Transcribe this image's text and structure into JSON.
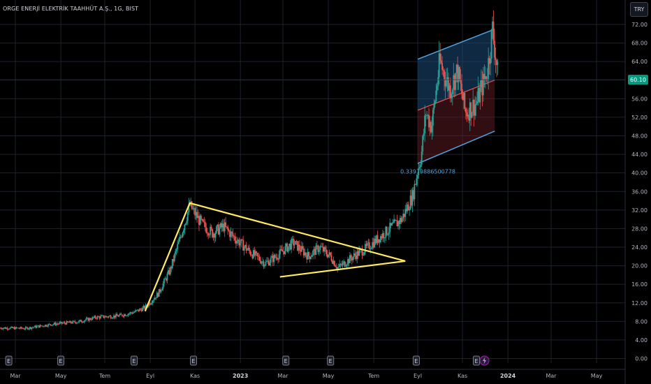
{
  "header": {
    "symbol_title": "ORGE ENERJİ ELEKTRİK TAAHHÜT A.Ş., 1G, BIST",
    "currency_label": "TRY"
  },
  "colors": {
    "background": "#000000",
    "up_candle": "#26a69a",
    "down_candle": "#ef5350",
    "triangle_lines": "#ffe862",
    "channel_lines": "#4fa3e0",
    "channel_upper_fill": "#1e4a78",
    "channel_lower_fill": "#6b1f26",
    "channel_midline": "#ef5350",
    "price_badge": "#089981",
    "grid": "#1e222d"
  },
  "price_badge": {
    "value": 60.1,
    "label": "60.10"
  },
  "channel_annotation": {
    "text": "0.3397988650077​8"
  },
  "earnings_marker": {
    "label": "E"
  },
  "dividend_marker": {
    "icon": "lightning-icon"
  },
  "chart_data": {
    "type": "candlestick",
    "title": "ORGE ENERJİ ELEKTRİK TAAHHÜT A.Ş., 1G, BIST",
    "y_axis": {
      "range": [
        0,
        72
      ],
      "ticks": [
        "0.00",
        "4.00",
        "8.00",
        "12.00",
        "16.00",
        "20.00",
        "24.00",
        "28.00",
        "32.00",
        "36.00",
        "40.00",
        "44.00",
        "48.00",
        "52.00",
        "56.00",
        "60.00",
        "64.00",
        "68.00",
        "72.00"
      ]
    },
    "x_axis": {
      "range": [
        "2022-02-08",
        "2024-06-10"
      ],
      "labels": [
        {
          "text": "Mar",
          "date": "2022-03-01",
          "bold": false
        },
        {
          "text": "May",
          "date": "2022-05-02",
          "bold": false
        },
        {
          "text": "Tem",
          "date": "2022-07-01",
          "bold": false
        },
        {
          "text": "Eyl",
          "date": "2022-09-01",
          "bold": false
        },
        {
          "text": "Kas",
          "date": "2022-11-01",
          "bold": false
        },
        {
          "text": "2023",
          "date": "2023-01-02",
          "bold": true
        },
        {
          "text": "Mar",
          "date": "2023-03-01",
          "bold": false
        },
        {
          "text": "May",
          "date": "2023-05-02",
          "bold": false
        },
        {
          "text": "Tem",
          "date": "2023-07-03",
          "bold": false
        },
        {
          "text": "Eyl",
          "date": "2023-09-01",
          "bold": false
        },
        {
          "text": "Kas",
          "date": "2023-11-01",
          "bold": false
        },
        {
          "text": "2024",
          "date": "2024-01-02",
          "bold": true
        },
        {
          "text": "Mar",
          "date": "2024-03-01",
          "bold": false
        },
        {
          "text": "May",
          "date": "2024-05-02",
          "bold": false
        }
      ]
    },
    "close_path": [
      [
        "2022-02-08",
        6.6
      ],
      [
        "2022-03-15",
        6.5
      ],
      [
        "2022-04-20",
        7.4
      ],
      [
        "2022-05-25",
        7.9
      ],
      [
        "2022-06-20",
        8.9
      ],
      [
        "2022-07-20",
        9.2
      ],
      [
        "2022-08-10",
        10.0
      ],
      [
        "2022-08-25",
        11.0
      ],
      [
        "2022-09-12",
        14.0
      ],
      [
        "2022-09-28",
        19.0
      ],
      [
        "2022-10-10",
        25.0
      ],
      [
        "2022-10-25",
        33.0
      ],
      [
        "2022-11-10",
        29.0
      ],
      [
        "2022-11-25",
        27.0
      ],
      [
        "2022-12-10",
        28.5
      ],
      [
        "2022-12-25",
        26.0
      ],
      [
        "2023-01-15",
        23.0
      ],
      [
        "2023-02-05",
        20.5
      ],
      [
        "2023-02-20",
        22.0
      ],
      [
        "2023-03-15",
        25.0
      ],
      [
        "2023-04-05",
        22.0
      ],
      [
        "2023-04-20",
        24.0
      ],
      [
        "2023-05-05",
        22.0
      ],
      [
        "2023-05-15",
        19.5
      ],
      [
        "2023-06-05",
        22.0
      ],
      [
        "2023-06-25",
        24.0
      ],
      [
        "2023-07-10",
        26.0
      ],
      [
        "2023-07-25",
        28.0
      ],
      [
        "2023-08-10",
        30.0
      ],
      [
        "2023-08-25",
        35.0
      ],
      [
        "2023-09-01",
        40.5
      ],
      [
        "2023-09-06",
        44.0
      ],
      [
        "2023-09-12",
        53.0
      ],
      [
        "2023-09-20",
        50.0
      ],
      [
        "2023-10-01",
        64.0
      ],
      [
        "2023-10-15",
        58.0
      ],
      [
        "2023-10-25",
        62.0
      ],
      [
        "2023-11-05",
        53.0
      ],
      [
        "2023-11-20",
        55.0
      ],
      [
        "2023-12-05",
        62.0
      ],
      [
        "2023-12-12",
        71.0
      ],
      [
        "2023-12-20",
        60.1
      ]
    ],
    "triangle_pattern": {
      "points": [
        [
          "2022-08-25",
          10.2
        ],
        [
          "2022-10-25",
          33.5
        ],
        [
          "2023-08-15",
          21.0
        ],
        [
          "2023-02-25",
          17.6
        ]
      ]
    },
    "regression_channel": {
      "start": "2023-09-01",
      "end": "2023-12-15",
      "upper": [
        64.5,
        71.0
      ],
      "middle": [
        53.5,
        60.0
      ],
      "lower": [
        42.0,
        49.0
      ],
      "label": "0.3397988650077​8"
    },
    "earnings_dates": [
      "2022-02-20",
      "2022-05-02",
      "2022-08-10",
      "2022-10-30",
      "2023-03-05",
      "2023-05-05",
      "2023-08-30",
      "2023-11-20"
    ],
    "dividend_dates": [
      "2023-12-01"
    ],
    "grid": true
  }
}
